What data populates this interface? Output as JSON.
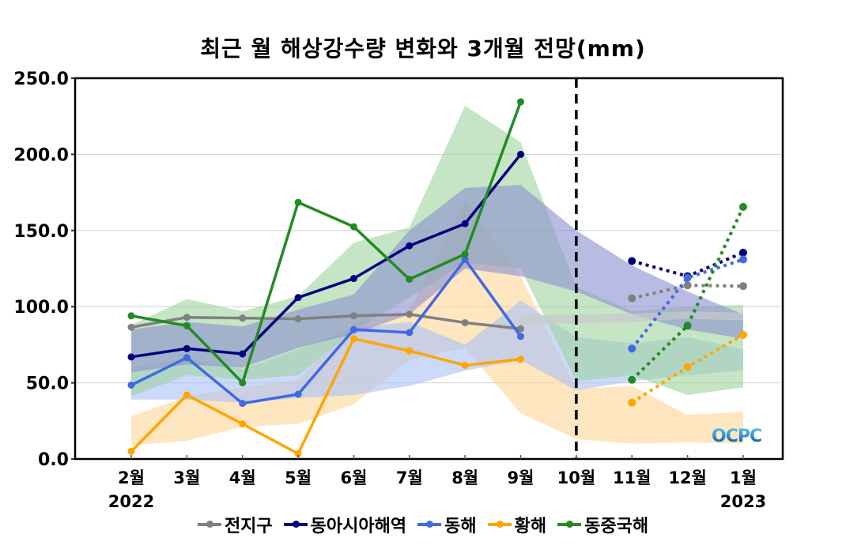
{
  "chart_data": {
    "type": "line",
    "title": "최근 월 해상강수량 변화와 3개월 전망(mm)",
    "xlabel": "",
    "ylabel": "",
    "ylim": [
      0,
      250
    ],
    "yticks": [
      "0.0",
      "50.0",
      "100.0",
      "150.0",
      "200.0",
      "250.0"
    ],
    "ytick_values": [
      0,
      50,
      100,
      150,
      200,
      250
    ],
    "categories": [
      "2월",
      "3월",
      "4월",
      "5월",
      "6월",
      "7월",
      "8월",
      "9월",
      "10월",
      "11월",
      "12월",
      "1월"
    ],
    "year_labels": {
      "start": "2022",
      "end": "2023"
    },
    "grid": true,
    "divider_at": "10월",
    "legend_position": "bottom",
    "watermark": "OCPC",
    "series": [
      {
        "name": "전지구",
        "color": "#808080",
        "band_color": "#c7c9cc",
        "observed": [
          86.5,
          93,
          92.5,
          92,
          94,
          95,
          89.5,
          85.5
        ],
        "forecast": {
          "months": [
            "11월",
            "12월",
            "1월"
          ],
          "values": [
            105.5,
            114,
            113.5
          ]
        },
        "band_lower": [
          null,
          null,
          null,
          null,
          null,
          null,
          null,
          88.5,
          89,
          90,
          92,
          91
        ],
        "band_upper": [
          null,
          null,
          null,
          null,
          null,
          null,
          null,
          94,
          95,
          95.5,
          97,
          96
        ]
      },
      {
        "name": "동아시아해역",
        "color": "#000080",
        "band_color": "#8a8fcf",
        "observed": [
          67,
          72.5,
          69,
          106,
          118.5,
          140,
          154.5,
          200
        ],
        "forecast": {
          "months": [
            "11월",
            "12월",
            "1월"
          ],
          "values": [
            130,
            120,
            135.5
          ]
        },
        "band_lower": [
          57,
          62,
          60,
          73,
          82,
          95,
          125,
          120,
          110,
          95,
          85,
          79
        ],
        "band_upper": [
          85,
          90,
          87,
          98,
          108,
          150,
          178,
          180,
          150,
          127,
          110,
          95
        ]
      },
      {
        "name": "동해",
        "color": "#4169e1",
        "band_color": "#a8bff7",
        "observed": [
          48.5,
          66.5,
          36.5,
          42.5,
          85,
          83,
          131,
          80.5
        ],
        "forecast": {
          "months": [
            "11월",
            "12월",
            "1월"
          ],
          "values": [
            72.5,
            119,
            131
          ]
        },
        "band_lower": [
          39,
          39,
          37,
          40,
          42,
          48,
          58,
          65,
          45,
          51,
          55,
          58
        ],
        "band_upper": [
          60,
          66,
          59,
          72,
          86,
          90,
          75,
          104,
          80,
          76,
          80,
          72
        ]
      },
      {
        "name": "황해",
        "color": "#ffa500",
        "band_color": "#fcd596",
        "observed": [
          5,
          42,
          23,
          3.5,
          79,
          71,
          61.5,
          65.5
        ],
        "forecast": {
          "months": [
            "11월",
            "12월",
            "1월"
          ],
          "values": [
            37,
            60.5,
            81.5
          ]
        },
        "band_lower": [
          9,
          12,
          21,
          23,
          36,
          65,
          73,
          30,
          13,
          10,
          11,
          10
        ],
        "band_upper": [
          28,
          41,
          47,
          52,
          89,
          97,
          170,
          120,
          46,
          48,
          29,
          31
        ]
      },
      {
        "name": "동중국해",
        "color": "#228b22",
        "band_color": "#9ed39e",
        "observed": [
          94,
          87.5,
          50,
          168.5,
          152.5,
          118,
          134.5,
          234.5
        ],
        "forecast": {
          "months": [
            "11월",
            "12월",
            "1월"
          ],
          "values": [
            52,
            87.5,
            165.5
          ]
        },
        "band_lower": [
          41,
          55,
          52,
          55,
          84,
          106,
          129,
          125,
          51,
          55,
          42,
          47
        ],
        "band_upper": [
          88,
          105,
          97,
          107,
          142,
          152,
          232,
          208,
          113,
          97,
          100,
          101
        ]
      }
    ]
  }
}
